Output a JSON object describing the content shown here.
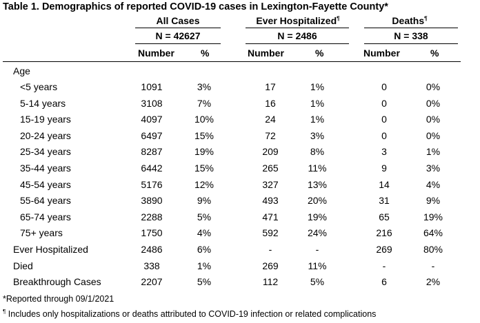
{
  "title": "Table 1. Demographics of reported COVID-19 cases in Lexington-Fayette County*",
  "groups": [
    {
      "label": "All Cases",
      "n": "N = 42627"
    },
    {
      "label": "Ever Hospitalized",
      "n": "N = 2486"
    },
    {
      "label": "Deaths",
      "n": "N = 338"
    }
  ],
  "dagger": "¶",
  "subheaders": {
    "number": "Number",
    "percent": "%"
  },
  "section_label": "Age",
  "rows": [
    {
      "label": "<5 years",
      "indent": true,
      "values": [
        "1091",
        "3%",
        "17",
        "1%",
        "0",
        "0%"
      ]
    },
    {
      "label": "5-14 years",
      "indent": true,
      "values": [
        "3108",
        "7%",
        "16",
        "1%",
        "0",
        "0%"
      ]
    },
    {
      "label": "15-19 years",
      "indent": true,
      "values": [
        "4097",
        "10%",
        "24",
        "1%",
        "0",
        "0%"
      ]
    },
    {
      "label": "20-24 years",
      "indent": true,
      "values": [
        "6497",
        "15%",
        "72",
        "3%",
        "0",
        "0%"
      ]
    },
    {
      "label": "25-34 years",
      "indent": true,
      "values": [
        "8287",
        "19%",
        "209",
        "8%",
        "3",
        "1%"
      ]
    },
    {
      "label": "35-44 years",
      "indent": true,
      "values": [
        "6442",
        "15%",
        "265",
        "11%",
        "9",
        "3%"
      ]
    },
    {
      "label": "45-54 years",
      "indent": true,
      "values": [
        "5176",
        "12%",
        "327",
        "13%",
        "14",
        "4%"
      ]
    },
    {
      "label": "55-64 years",
      "indent": true,
      "values": [
        "3890",
        "9%",
        "493",
        "20%",
        "31",
        "9%"
      ]
    },
    {
      "label": "65-74 years",
      "indent": true,
      "values": [
        "2288",
        "5%",
        "471",
        "19%",
        "65",
        "19%"
      ]
    },
    {
      "label": "75+ years",
      "indent": true,
      "values": [
        "1750",
        "4%",
        "592",
        "24%",
        "216",
        "64%"
      ]
    },
    {
      "label": "Ever Hospitalized",
      "indent": false,
      "values": [
        "2486",
        "6%",
        "-",
        "-",
        "269",
        "80%"
      ]
    },
    {
      "label": "Died",
      "indent": false,
      "values": [
        "338",
        "1%",
        "269",
        "11%",
        "-",
        "-"
      ]
    },
    {
      "label": "Breakthrough Cases",
      "indent": false,
      "values": [
        "2207",
        "5%",
        "112",
        "5%",
        "6",
        "2%"
      ]
    }
  ],
  "footnotes": [
    {
      "mark": "*",
      "text": "Reported through 09/1/2021"
    },
    {
      "mark": "¶",
      "text": "Includes only hospitalizations or deaths attributed to COVID-19 infection or related complications"
    }
  ]
}
